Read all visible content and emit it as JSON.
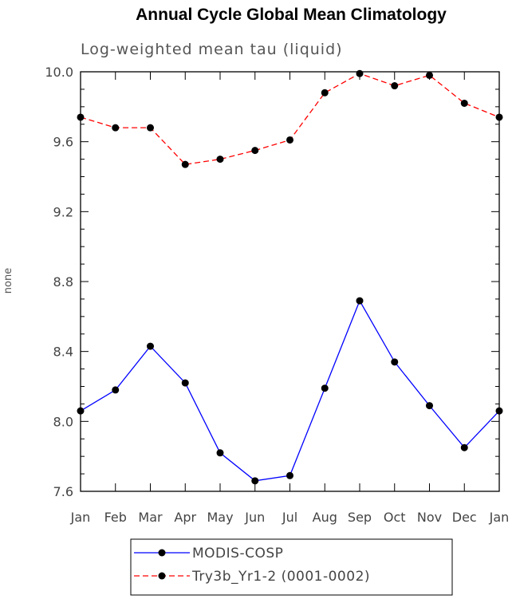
{
  "chart_data": {
    "type": "line",
    "title": "Annual Cycle Global Mean Climatology",
    "subtitle": "Log-weighted mean tau (liquid)",
    "xlabel": "",
    "ylabel": "none",
    "categories": [
      "Jan",
      "Feb",
      "Mar",
      "Apr",
      "May",
      "Jun",
      "Jul",
      "Aug",
      "Sep",
      "Oct",
      "Nov",
      "Dec",
      "Jan"
    ],
    "ylim": [
      7.6,
      10.0
    ],
    "yticks": [
      "7.6",
      "8.0",
      "8.4",
      "8.8",
      "9.2",
      "9.6",
      "10.0"
    ],
    "legend_position": "bottom",
    "series": [
      {
        "name": "MODIS-COSP",
        "color": "#0000ff",
        "line_style": "solid",
        "marker": "filled-circle",
        "values": [
          8.06,
          8.18,
          8.43,
          8.22,
          7.82,
          7.66,
          7.69,
          8.19,
          8.69,
          8.34,
          8.09,
          7.85,
          8.06
        ]
      },
      {
        "name": "Try3b_Yr1-2 (0001-0002)",
        "color": "#ff0000",
        "line_style": "dashed",
        "marker": "filled-circle",
        "values": [
          9.74,
          9.68,
          9.68,
          9.47,
          9.5,
          9.55,
          9.61,
          9.88,
          9.99,
          9.92,
          9.98,
          9.82,
          9.74
        ]
      }
    ]
  }
}
